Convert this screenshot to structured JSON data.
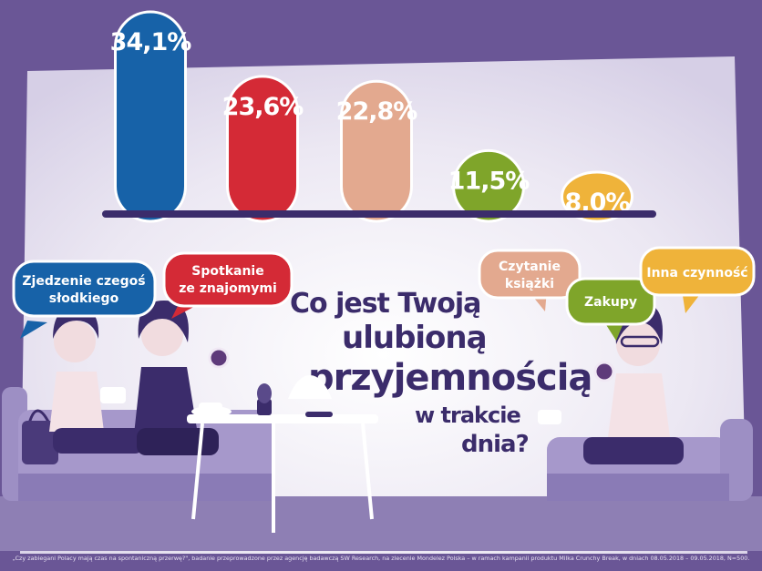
{
  "chart_data": {
    "type": "bar",
    "categories": [
      "Zjedzenie czegoś słodkiego",
      "Spotkanie ze znajomymi",
      "Czytanie książki",
      "Zakupy",
      "Inna czynność"
    ],
    "values": [
      34.1,
      23.6,
      22.8,
      11.5,
      8.0
    ],
    "value_labels": [
      "34,1%",
      "23,6%",
      "22,8%",
      "11,5%",
      "8,0%"
    ],
    "ylim": [
      0,
      34.1
    ],
    "title_lines": [
      "Co jest Twoją",
      "ulubioną",
      "przyjemnością",
      "w trakcie",
      "dnia?"
    ],
    "bubbles": [
      {
        "lines": [
          "Zjedzenie czegoś",
          "słodkiego"
        ]
      },
      {
        "lines": [
          "Spotkanie",
          "ze znajomymi"
        ]
      },
      {
        "lines": [
          "Czytanie",
          "książki"
        ]
      },
      {
        "lines": [
          "Zakupy"
        ]
      },
      {
        "lines": [
          "Inna czynność"
        ]
      }
    ]
  },
  "colors": {
    "series": [
      "#1762a8",
      "#d42a36",
      "#e3a98f",
      "#7fa52a",
      "#efb33a"
    ],
    "background": "#6a5696",
    "panel": "#ece8f2",
    "title": "#3b2c6b"
  },
  "footnote": "„Czy zabiegani Polacy mają czas na spontaniczną przerwę?\", badanie przeprowadzone przez agencję badawczą SW Research, na zlecenie Mondelez Polska – w ramach kampanii produktu Milka Crunchy Break, w dniach 08.05.2018 – 09.05.2018, N=500."
}
